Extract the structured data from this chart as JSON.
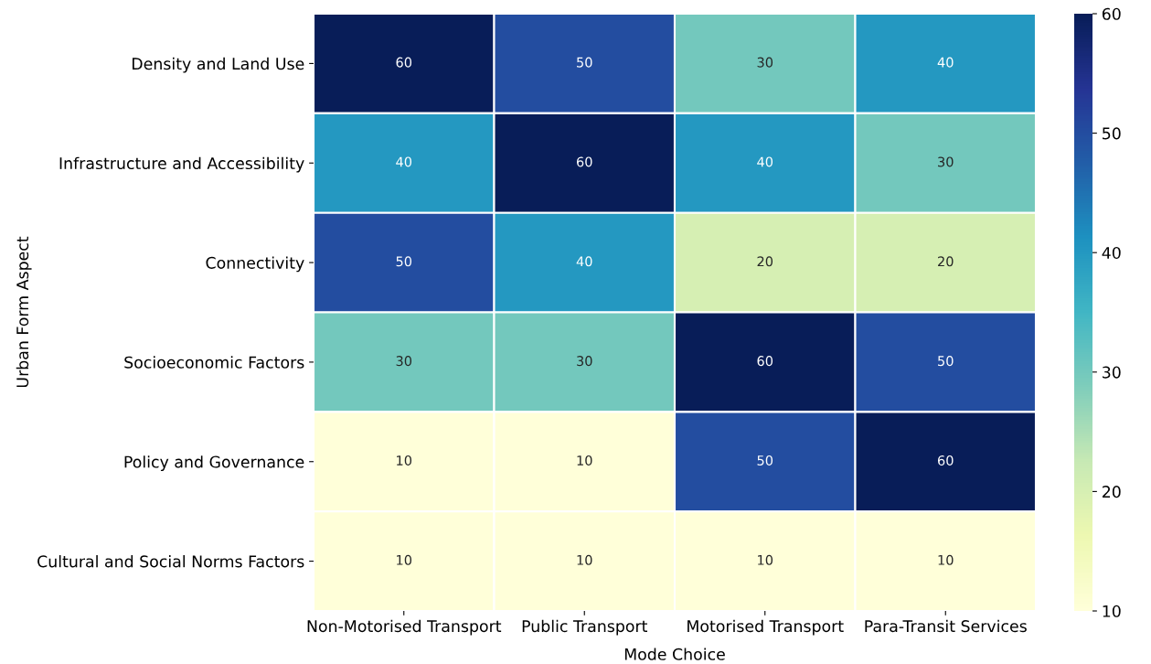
{
  "chart_data": {
    "type": "heatmap",
    "xlabel": "Mode Choice",
    "ylabel": "Urban Form Aspect",
    "categories": [
      "Non-Motorised Transport",
      "Public Transport",
      "Motorised Transport",
      "Para-Transit Services"
    ],
    "y_categories": [
      "Density and Land Use",
      "Infrastructure and Accessibility",
      "Connectivity",
      "Socioeconomic Factors",
      "Policy and Governance",
      "Cultural and Social Norms Factors"
    ],
    "cells": [
      [
        60,
        50,
        30,
        40
      ],
      [
        40,
        60,
        40,
        30
      ],
      [
        50,
        40,
        20,
        20
      ],
      [
        30,
        30,
        60,
        50
      ],
      [
        10,
        10,
        50,
        60
      ],
      [
        10,
        10,
        10,
        10
      ]
    ],
    "data_labels": true,
    "clim": [
      10,
      60
    ],
    "cticks": [
      10,
      20,
      30,
      40,
      50,
      60
    ]
  }
}
